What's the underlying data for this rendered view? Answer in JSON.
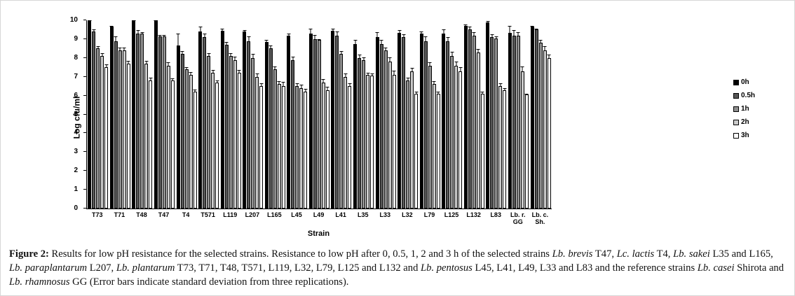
{
  "figure": {
    "y_axis_label": "Log cfu/ml",
    "x_axis_label": "Strain"
  },
  "chart_data": {
    "type": "bar",
    "title": "",
    "xlabel": "Strain",
    "ylabel": "Log cfu/ml",
    "ylim": [
      0,
      10
    ],
    "yticks": [
      0,
      1,
      2,
      3,
      4,
      5,
      6,
      7,
      8,
      9,
      10
    ],
    "grid": false,
    "legend_position": "right",
    "categories": [
      "T73",
      "T71",
      "T48",
      "T47",
      "T4",
      "T571",
      "L119",
      "L207",
      "L165",
      "L45",
      "L49",
      "L41",
      "L35",
      "L33",
      "L32",
      "L79",
      "L125",
      "L132",
      "L83",
      "Lb. r.\nGG",
      "Lb. c.\nSh."
    ],
    "series": [
      {
        "name": "0h",
        "color": "#000000",
        "values": [
          10.0,
          9.65,
          10.0,
          10.0,
          8.65,
          9.4,
          9.45,
          9.4,
          8.85,
          9.2,
          9.3,
          9.45,
          8.75,
          9.1,
          9.35,
          9.3,
          9.3,
          9.7,
          9.9,
          9.35,
          9.65
        ],
        "errors": [
          0.05,
          0.1,
          0.05,
          0.05,
          0.7,
          0.3,
          0.15,
          0.1,
          0.15,
          0.15,
          0.3,
          0.15,
          0.25,
          0.3,
          0.15,
          0.15,
          0.25,
          0.1,
          0.1,
          0.4,
          0.1
        ]
      },
      {
        "name": "0.5h",
        "color": "#565656",
        "values": [
          9.4,
          8.9,
          9.3,
          9.15,
          8.2,
          9.1,
          8.7,
          8.9,
          8.5,
          7.9,
          9.0,
          9.2,
          8.0,
          8.75,
          9.1,
          8.9,
          8.9,
          9.5,
          9.1,
          9.2,
          9.5
        ],
        "errors": [
          0.15,
          0.3,
          0.2,
          0.1,
          0.2,
          0.25,
          0.2,
          0.3,
          0.2,
          0.2,
          0.25,
          0.25,
          0.2,
          0.25,
          0.2,
          0.3,
          0.25,
          0.2,
          0.2,
          0.3,
          0.1
        ]
      },
      {
        "name": "1h",
        "color": "#8f8f8f",
        "values": [
          8.5,
          8.4,
          9.3,
          9.15,
          7.4,
          8.1,
          8.1,
          8.0,
          7.4,
          6.5,
          8.95,
          8.2,
          7.9,
          8.4,
          6.8,
          7.6,
          8.1,
          9.2,
          9.05,
          9.2,
          8.8
        ],
        "errors": [
          0.15,
          0.2,
          0.1,
          0.1,
          0.15,
          0.2,
          0.2,
          0.25,
          0.2,
          0.2,
          0.1,
          0.2,
          0.15,
          0.2,
          0.2,
          0.2,
          0.25,
          0.2,
          0.15,
          0.2,
          0.2
        ]
      },
      {
        "name": "2h",
        "color": "#cbcbcb",
        "values": [
          8.1,
          8.4,
          7.7,
          7.6,
          7.1,
          7.2,
          7.9,
          7.0,
          6.6,
          6.4,
          6.7,
          7.0,
          7.1,
          7.8,
          7.3,
          6.6,
          7.6,
          8.3,
          6.5,
          7.3,
          8.4
        ],
        "errors": [
          0.2,
          0.2,
          0.2,
          0.2,
          0.2,
          0.2,
          0.2,
          0.2,
          0.2,
          0.2,
          0.2,
          0.2,
          0.15,
          0.25,
          0.2,
          0.2,
          0.25,
          0.2,
          0.2,
          0.3,
          0.25
        ]
      },
      {
        "name": "3h",
        "color": "#ffffff",
        "values": [
          7.5,
          7.7,
          6.8,
          6.8,
          6.2,
          6.7,
          7.2,
          6.5,
          6.5,
          6.2,
          6.3,
          6.5,
          7.05,
          7.1,
          6.1,
          6.1,
          7.3,
          6.1,
          6.3,
          6.05,
          8.0
        ],
        "errors": [
          0.2,
          0.2,
          0.2,
          0.15,
          0.15,
          0.15,
          0.2,
          0.2,
          0.25,
          0.2,
          0.2,
          0.2,
          0.15,
          0.25,
          0.15,
          0.15,
          0.25,
          0.15,
          0.15,
          0.1,
          0.2
        ]
      }
    ]
  },
  "caption": {
    "segments": [
      {
        "text": "Figure 2: ",
        "bold": true,
        "italic": false
      },
      {
        "text": "Results for low pH resistance for the selected strains. Resistance to low pH after 0, 0.5, 1, 2 and 3 h of the selected strains ",
        "bold": false,
        "italic": false
      },
      {
        "text": "Lb. brevis",
        "bold": false,
        "italic": true
      },
      {
        "text": " T47, ",
        "bold": false,
        "italic": false
      },
      {
        "text": "Lc. lactis",
        "bold": false,
        "italic": true
      },
      {
        "text": " T4, ",
        "bold": false,
        "italic": false
      },
      {
        "text": "Lb. sakei",
        "bold": false,
        "italic": true
      },
      {
        "text": " L35 and L165, ",
        "bold": false,
        "italic": false
      },
      {
        "text": "Lb. paraplantarum",
        "bold": false,
        "italic": true
      },
      {
        "text": " L207, ",
        "bold": false,
        "italic": false
      },
      {
        "text": "Lb. plantarum",
        "bold": false,
        "italic": true
      },
      {
        "text": " T73, T71, T48, T571, L119, L32, L79, L125 and L132 and ",
        "bold": false,
        "italic": false
      },
      {
        "text": "Lb. pentosus",
        "bold": false,
        "italic": true
      },
      {
        "text": " L45, L41, L49, L33 and L83 and the reference strains ",
        "bold": false,
        "italic": false
      },
      {
        "text": "Lb. casei",
        "bold": false,
        "italic": true
      },
      {
        "text": " Shirota and ",
        "bold": false,
        "italic": false
      },
      {
        "text": "Lb. rhamnosus",
        "bold": false,
        "italic": true
      },
      {
        "text": " GG (Error bars indicate standard deviation from three replications).",
        "bold": false,
        "italic": false
      }
    ]
  }
}
